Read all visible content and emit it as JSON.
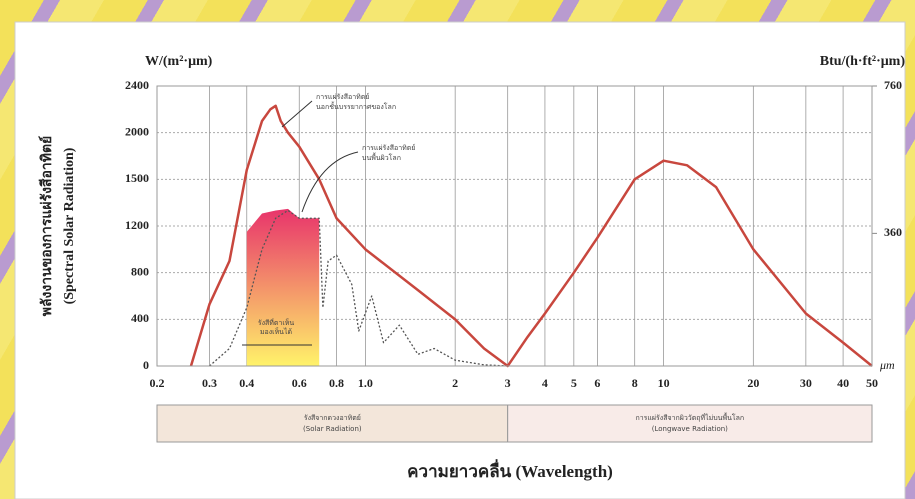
{
  "chart_data": {
    "type": "line",
    "y_unit": "W/(m²·μm)",
    "y2_unit": "Btu/(h·ft²·μm)",
    "x_unit": "μm",
    "y_label": [
      "พลังงานของการแผ่รังสีอาทิตย์",
      "(Spectral Solar Radiation)"
    ],
    "x_label": "ความยาวคลื่น (Wavelength)",
    "xscale": "log",
    "xlim": [
      0.2,
      50
    ],
    "xticks": [
      0.2,
      0.3,
      0.4,
      0.6,
      0.8,
      {
        "value": 1,
        "label": "1.0"
      },
      2,
      3,
      4,
      5,
      6,
      8,
      10,
      20,
      30,
      40,
      50
    ],
    "ylim": [
      0,
      2400
    ],
    "yticks": [
      0,
      400,
      800,
      1200,
      1500,
      2000,
      2400
    ],
    "y2lim": [
      0,
      760
    ],
    "y2ticks": [
      360,
      760
    ],
    "grid": true,
    "series": [
      {
        "type": "line",
        "style": "solid",
        "color": "#c8473e",
        "x": [
          0.26,
          0.3,
          0.35,
          0.4,
          0.45,
          0.48,
          0.5,
          0.52,
          0.55,
          0.6,
          0.7,
          0.8,
          1.0,
          1.5,
          2,
          2.5,
          3,
          3.5,
          4,
          5,
          6,
          8,
          10,
          12,
          15,
          20,
          30,
          40,
          50
        ],
        "values": [
          0,
          530,
          900,
          1600,
          2100,
          2200,
          2230,
          2100,
          2000,
          1850,
          1500,
          1250,
          1000,
          650,
          400,
          150,
          0,
          250,
          450,
          800,
          1100,
          1500,
          1700,
          1650,
          1450,
          1000,
          450,
          200,
          0
        ]
      },
      {
        "type": "line",
        "style": "dotted",
        "color": "#555555",
        "x": [
          0.3,
          0.35,
          0.4,
          0.45,
          0.5,
          0.55,
          0.6,
          0.7,
          0.72,
          0.75,
          0.8,
          0.9,
          0.95,
          1.05,
          1.15,
          1.3,
          1.5,
          1.7,
          2,
          2.5,
          3
        ],
        "values": [
          0,
          150,
          500,
          1000,
          1250,
          1300,
          1250,
          1250,
          500,
          900,
          950,
          700,
          300,
          600,
          200,
          350,
          100,
          150,
          50,
          10,
          0
        ]
      },
      {
        "type": "area",
        "color": "#e8346b",
        "color2": "#fff36a",
        "x": [
          0.4,
          0.45,
          0.5,
          0.55,
          0.6,
          0.7
        ],
        "values": [
          1150,
          1280,
          1300,
          1310,
          1250,
          1250
        ]
      }
    ],
    "bands": [
      {
        "x": [
          0.2,
          3
        ],
        "color": "#f3e6da",
        "label": [
          "รังสีจากดวงอาทิตย์",
          "(Solar Radiation)"
        ]
      },
      {
        "x": [
          3,
          50
        ],
        "color": "#f8ebe8",
        "label": [
          "การแผ่รังสีจากผิววัตถุที่ไม่บนพื้นโลก",
          "(Longwave Radiation)"
        ]
      }
    ],
    "annotations": [
      [
        "การแผ่รังสีอาทิตย์",
        "นอกชั้นบรรยากาศของโลก"
      ],
      [
        "การแผ่รังสีอาทิตย์",
        "บนพื้นผิวโลก"
      ],
      [
        "รังสีที่ตาเห็น",
        "มองเห็นได้"
      ]
    ]
  }
}
